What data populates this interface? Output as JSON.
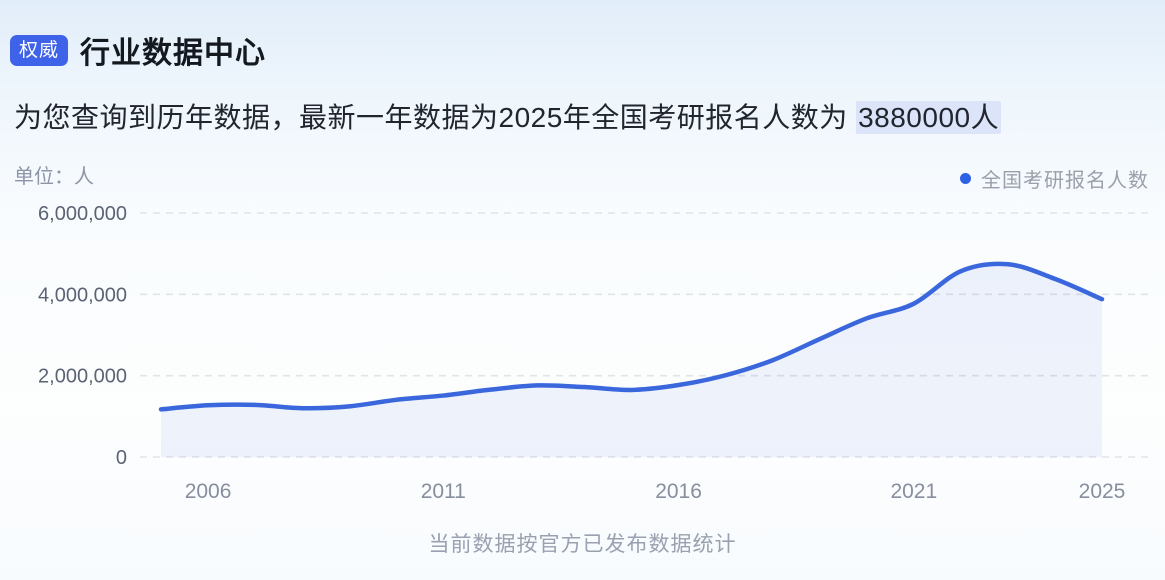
{
  "header": {
    "badge": "权威",
    "title": "行业数据中心"
  },
  "summary": {
    "prefix": "为您查询到历年数据，最新一年数据为2025年全国考研报名人数为 ",
    "highlight": "3880000人"
  },
  "caption": "当前数据按官方已发布数据统计",
  "colors": {
    "line": "#3b67dd",
    "area_fill": "rgba(61,105,222,0.08)",
    "grid": "#e0e3e8",
    "y_tick_text": "#5b6374",
    "x_tick_text": "#878f9e",
    "legend_dot": "#2d61e6",
    "badge_bg": "#3e63e8",
    "highlight_bg": "#dbe4f8"
  },
  "chart_data": {
    "type": "area",
    "title": "全国考研报名人数",
    "unit_label": "单位：人",
    "legend": [
      {
        "label": "全国考研报名人数"
      }
    ],
    "x": [
      2005,
      2006,
      2007,
      2008,
      2009,
      2010,
      2011,
      2012,
      2013,
      2014,
      2015,
      2016,
      2017,
      2018,
      2019,
      2020,
      2021,
      2022,
      2023,
      2024,
      2025
    ],
    "series": [
      {
        "name": "全国考研报名人数",
        "values": [
          1172000,
          1271200,
          1282000,
          1200000,
          1246000,
          1406000,
          1511000,
          1656000,
          1760000,
          1720000,
          1649000,
          1770000,
          2010000,
          2380000,
          2900000,
          3410000,
          3770000,
          4570000,
          4740000,
          4380000,
          3880000
        ]
      }
    ],
    "ylim": [
      0,
      6000000
    ],
    "yticks": [
      {
        "value": 0,
        "label": "0"
      },
      {
        "value": 2000000,
        "label": "2,000,000"
      },
      {
        "value": 4000000,
        "label": "4,000,000"
      },
      {
        "value": 6000000,
        "label": "6,000,000"
      }
    ],
    "xticks": [
      {
        "value": 2006,
        "label": "2006"
      },
      {
        "value": 2011,
        "label": "2011"
      },
      {
        "value": 2016,
        "label": "2016"
      },
      {
        "value": 2021,
        "label": "2021"
      },
      {
        "value": 2025,
        "label": "2025"
      }
    ],
    "grid": "dashed-horizontal",
    "legend_position": "top-right",
    "smooth": true
  }
}
